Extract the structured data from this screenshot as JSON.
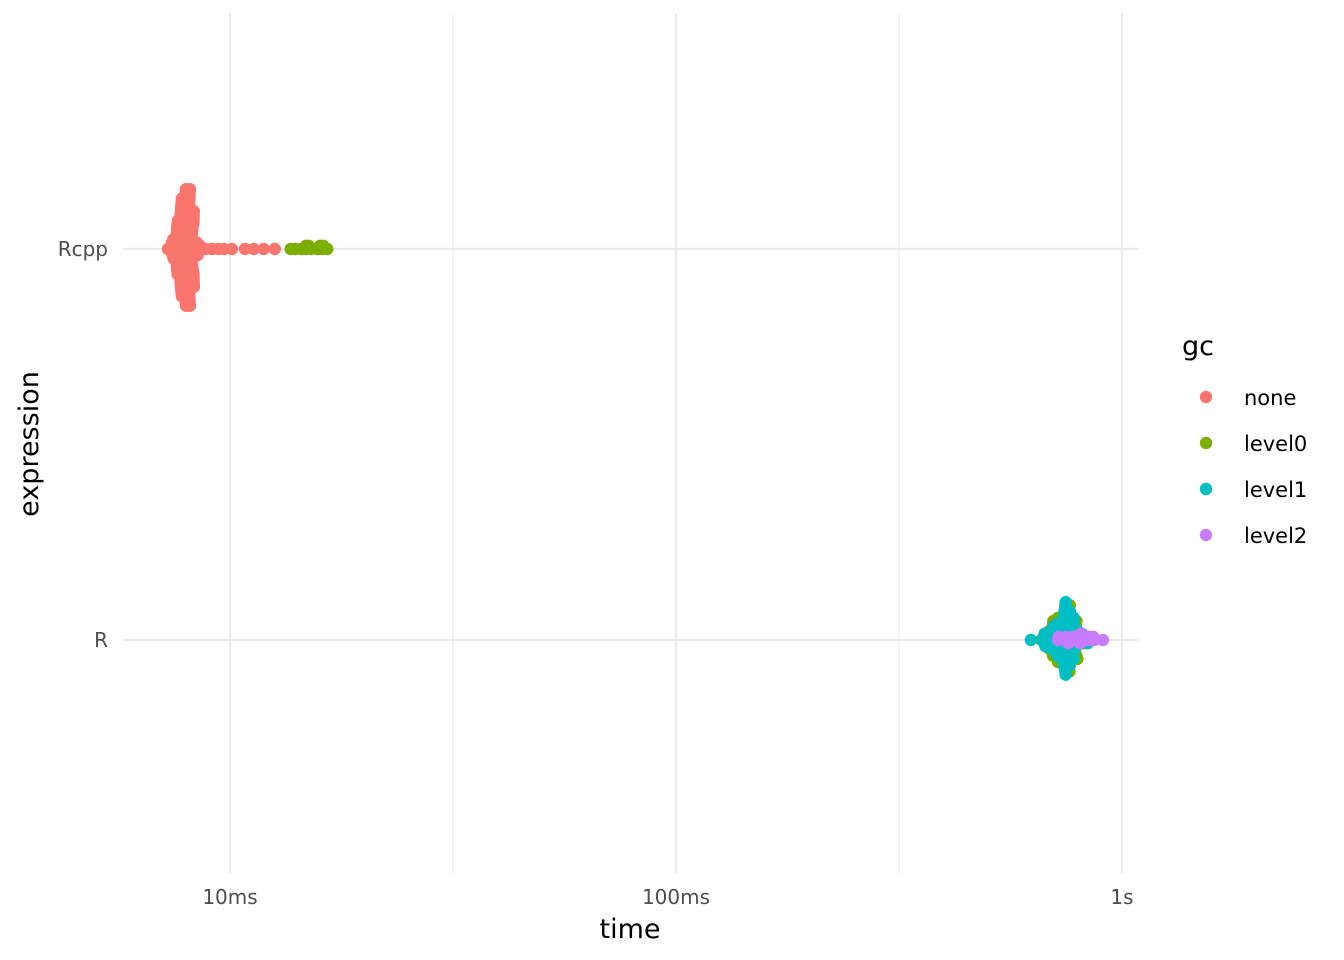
{
  "chart_data": {
    "type": "scatter",
    "subtype": "beeswarm",
    "xlabel": "time",
    "ylabel": "expression",
    "x_scale": "log10",
    "x_unit": "seconds",
    "xlim": [
      0.0058,
      1.06
    ],
    "x_ticks": [
      {
        "value": 0.01,
        "label": "10ms"
      },
      {
        "value": 0.1,
        "label": "100ms"
      },
      {
        "value": 1,
        "label": "1s"
      }
    ],
    "x_minor_ticks": [
      0.0316,
      0.316
    ],
    "categories": [
      "Rcpp",
      "R"
    ],
    "legend": {
      "title": "gc",
      "position": "right",
      "entries": [
        {
          "key": "none",
          "label": "none",
          "color": "#F8766D"
        },
        {
          "key": "level0",
          "label": "level0",
          "color": "#7CAE00"
        },
        {
          "key": "level1",
          "label": "level1",
          "color": "#00BFC4"
        },
        {
          "key": "level2",
          "label": "level2",
          "color": "#C77CFF"
        }
      ]
    },
    "series": [
      {
        "category": "Rcpp",
        "groups": [
          {
            "gc": "none",
            "count": 165,
            "median": 0.0079,
            "spread": 0.014,
            "max_count": 48,
            "tail": [
              0.0085,
              0.0088,
              0.0091,
              0.0094,
              0.0097,
              0.0101,
              0.0108,
              0.0113,
              0.0119,
              0.0126
            ]
          },
          {
            "gc": "level0",
            "count": 14,
            "median": 0.0149,
            "spread": 0.03,
            "max_count": 5
          }
        ]
      },
      {
        "category": "R",
        "groups": [
          {
            "gc": "level0",
            "count": 120,
            "median": 0.74,
            "spread": 0.022,
            "max_count": 40
          },
          {
            "gc": "level1",
            "count": 110,
            "median": 0.745,
            "spread": 0.022,
            "max_count": 40
          },
          {
            "gc": "level2",
            "count": 20,
            "median": 0.8,
            "spread": 0.03,
            "max_count": 8
          }
        ]
      }
    ]
  }
}
